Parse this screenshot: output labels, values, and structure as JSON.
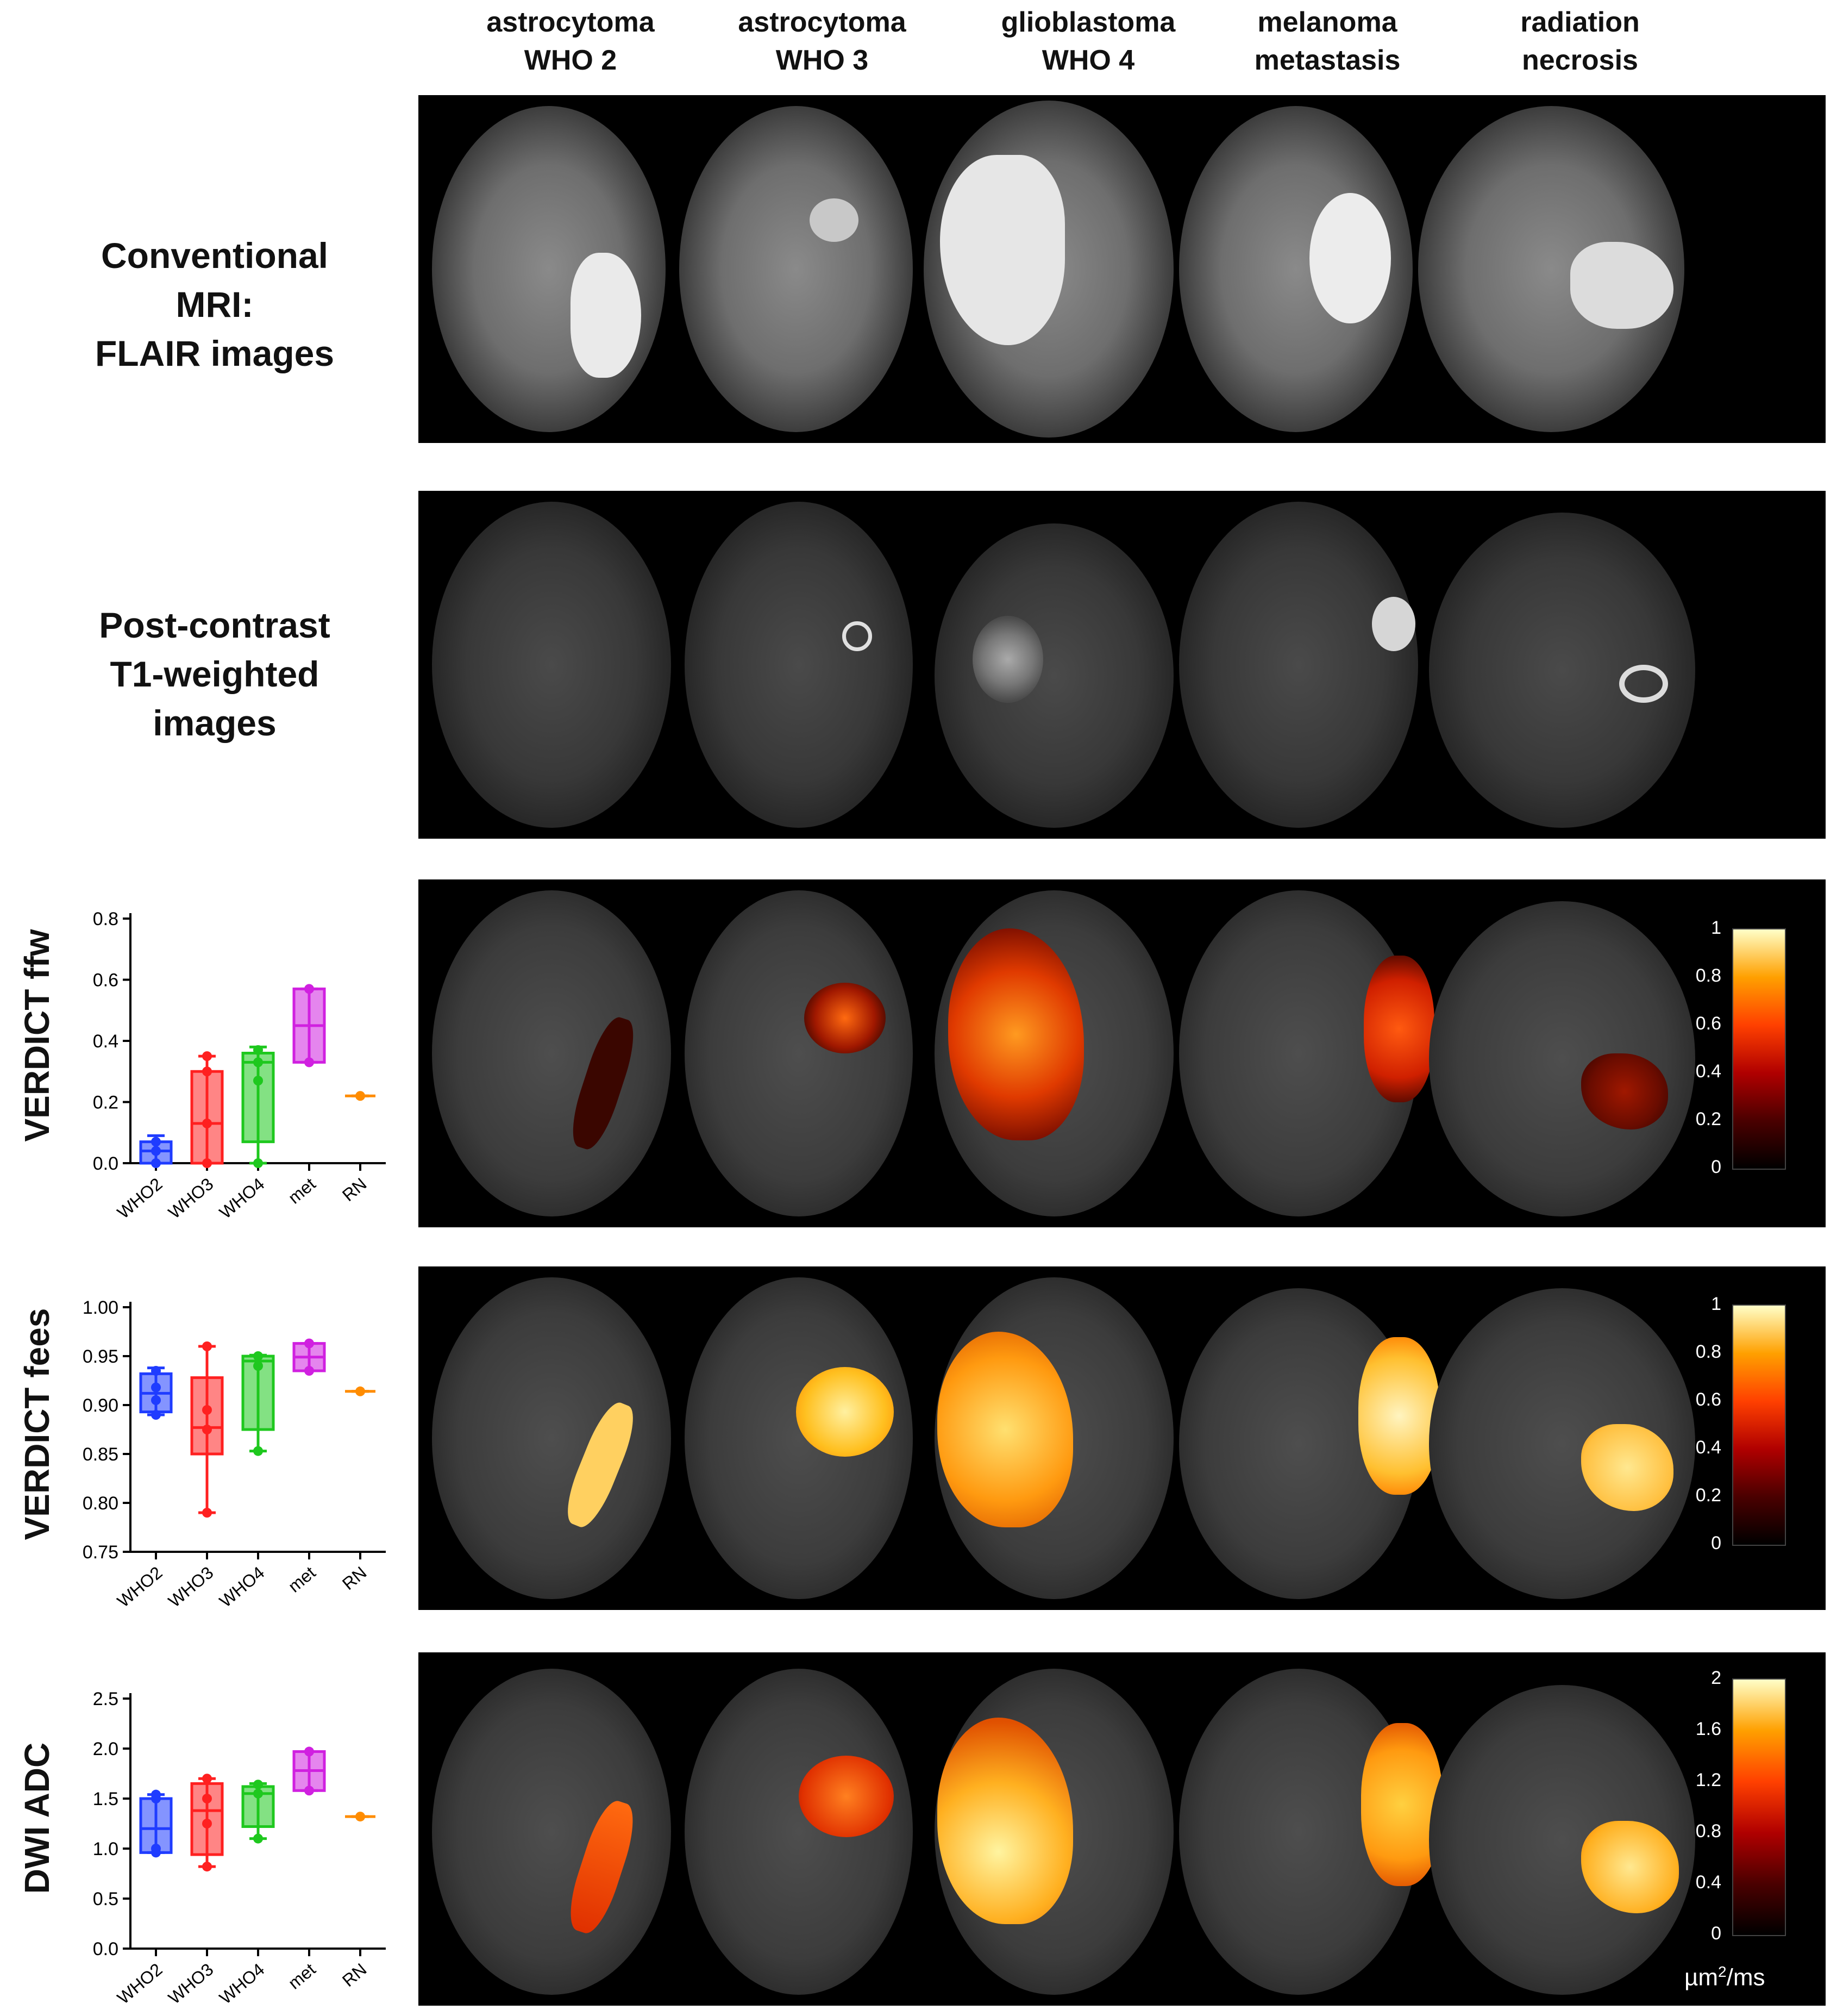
{
  "columns": [
    {
      "line1": "astrocytoma",
      "line2": "WHO 2"
    },
    {
      "line1": "astrocytoma",
      "line2": "WHO 3"
    },
    {
      "line1": "glioblastoma",
      "line2": "WHO 4"
    },
    {
      "line1": "melanoma",
      "line2": "metastasis"
    },
    {
      "line1": "radiation",
      "line2": "necrosis"
    }
  ],
  "rows": {
    "flair": {
      "line1": "Conventional",
      "line2": "MRI:",
      "line3": "FLAIR images"
    },
    "t1": {
      "line1": "Post-contrast",
      "line2": "T1-weighted",
      "line3": "images"
    }
  },
  "colorbars": {
    "ffw": {
      "ticks": [
        "1",
        "0.8",
        "0.6",
        "0.4",
        "0.2",
        "0"
      ]
    },
    "fees": {
      "ticks": [
        "1",
        "0.8",
        "0.6",
        "0.4",
        "0.2",
        "0"
      ]
    },
    "adc": {
      "ticks": [
        "2",
        "1.6",
        "1.2",
        "0.8",
        "0.4",
        "0"
      ],
      "unit_base": "µm",
      "unit_sup": "2",
      "unit_tail": "/ms"
    }
  },
  "chart_data": [
    {
      "type": "box",
      "ylabel": "VERDICT ffw",
      "categories": [
        "WHO2",
        "WHO3",
        "WHO4",
        "met",
        "RN"
      ],
      "ylim": [
        0,
        0.8
      ],
      "yticks": [
        "0.0",
        "0.2",
        "0.4",
        "0.6",
        "0.8"
      ],
      "series": [
        {
          "category": "WHO2",
          "color": "#1f3cff",
          "min": 0.0,
          "q1": 0.0,
          "median": 0.04,
          "q3": 0.07,
          "max": 0.09,
          "points": [
            0.0,
            0.04,
            0.07
          ]
        },
        {
          "category": "WHO3",
          "color": "#ff2020",
          "min": 0.0,
          "q1": 0.0,
          "median": 0.13,
          "q3": 0.3,
          "max": 0.35,
          "points": [
            0.0,
            0.13,
            0.3,
            0.35
          ]
        },
        {
          "category": "WHO4",
          "color": "#1ec81e",
          "min": 0.0,
          "q1": 0.07,
          "median": 0.33,
          "q3": 0.36,
          "max": 0.38,
          "points": [
            0.0,
            0.27,
            0.33,
            0.37
          ]
        },
        {
          "category": "met",
          "color": "#d020e0",
          "min": 0.33,
          "q1": 0.33,
          "median": 0.45,
          "q3": 0.57,
          "max": 0.57,
          "points": [
            0.33,
            0.57
          ]
        },
        {
          "category": "RN",
          "color": "#ff8c00",
          "min": 0.22,
          "q1": 0.22,
          "median": 0.22,
          "q3": 0.22,
          "max": 0.22,
          "points": [
            0.22
          ]
        }
      ]
    },
    {
      "type": "box",
      "ylabel": "VERDICT fees",
      "categories": [
        "WHO2",
        "WHO3",
        "WHO4",
        "met",
        "RN"
      ],
      "ylim": [
        0.75,
        1.0
      ],
      "yticks": [
        "0.75",
        "0.80",
        "0.85",
        "0.90",
        "0.95",
        "1.00"
      ],
      "series": [
        {
          "category": "WHO2",
          "color": "#1f3cff",
          "min": 0.89,
          "q1": 0.893,
          "median": 0.912,
          "q3": 0.932,
          "max": 0.938,
          "points": [
            0.89,
            0.905,
            0.918,
            0.935
          ]
        },
        {
          "category": "WHO3",
          "color": "#ff2020",
          "min": 0.79,
          "q1": 0.85,
          "median": 0.877,
          "q3": 0.928,
          "max": 0.96,
          "points": [
            0.79,
            0.875,
            0.895,
            0.96
          ]
        },
        {
          "category": "WHO4",
          "color": "#1ec81e",
          "min": 0.853,
          "q1": 0.875,
          "median": 0.945,
          "q3": 0.95,
          "max": 0.951,
          "points": [
            0.853,
            0.94,
            0.95
          ]
        },
        {
          "category": "met",
          "color": "#d020e0",
          "min": 0.935,
          "q1": 0.935,
          "median": 0.949,
          "q3": 0.963,
          "max": 0.963,
          "points": [
            0.935,
            0.963
          ]
        },
        {
          "category": "RN",
          "color": "#ff8c00",
          "min": 0.914,
          "q1": 0.914,
          "median": 0.914,
          "q3": 0.914,
          "max": 0.914,
          "points": [
            0.914
          ]
        }
      ]
    },
    {
      "type": "box",
      "ylabel": "DWI ADC",
      "categories": [
        "WHO2",
        "WHO3",
        "WHO4",
        "met",
        "RN"
      ],
      "ylim": [
        0,
        2.5
      ],
      "yticks": [
        "0.0",
        "0.5",
        "1.0",
        "1.5",
        "2.0",
        "2.5"
      ],
      "series": [
        {
          "category": "WHO2",
          "color": "#1f3cff",
          "min": 0.96,
          "q1": 0.96,
          "median": 1.2,
          "q3": 1.5,
          "max": 1.54,
          "points": [
            0.96,
            1.0,
            1.5,
            1.54
          ]
        },
        {
          "category": "WHO3",
          "color": "#ff2020",
          "min": 0.82,
          "q1": 0.94,
          "median": 1.38,
          "q3": 1.65,
          "max": 1.7,
          "points": [
            0.82,
            1.25,
            1.5,
            1.7
          ]
        },
        {
          "category": "WHO4",
          "color": "#1ec81e",
          "min": 1.1,
          "q1": 1.22,
          "median": 1.55,
          "q3": 1.62,
          "max": 1.65,
          "points": [
            1.1,
            1.55,
            1.64
          ]
        },
        {
          "category": "met",
          "color": "#d020e0",
          "min": 1.58,
          "q1": 1.58,
          "median": 1.78,
          "q3": 1.97,
          "max": 1.97,
          "points": [
            1.58,
            1.97
          ]
        },
        {
          "category": "RN",
          "color": "#ff8c00",
          "min": 1.32,
          "q1": 1.32,
          "median": 1.32,
          "q3": 1.32,
          "max": 1.32,
          "points": [
            1.32
          ]
        }
      ]
    }
  ]
}
